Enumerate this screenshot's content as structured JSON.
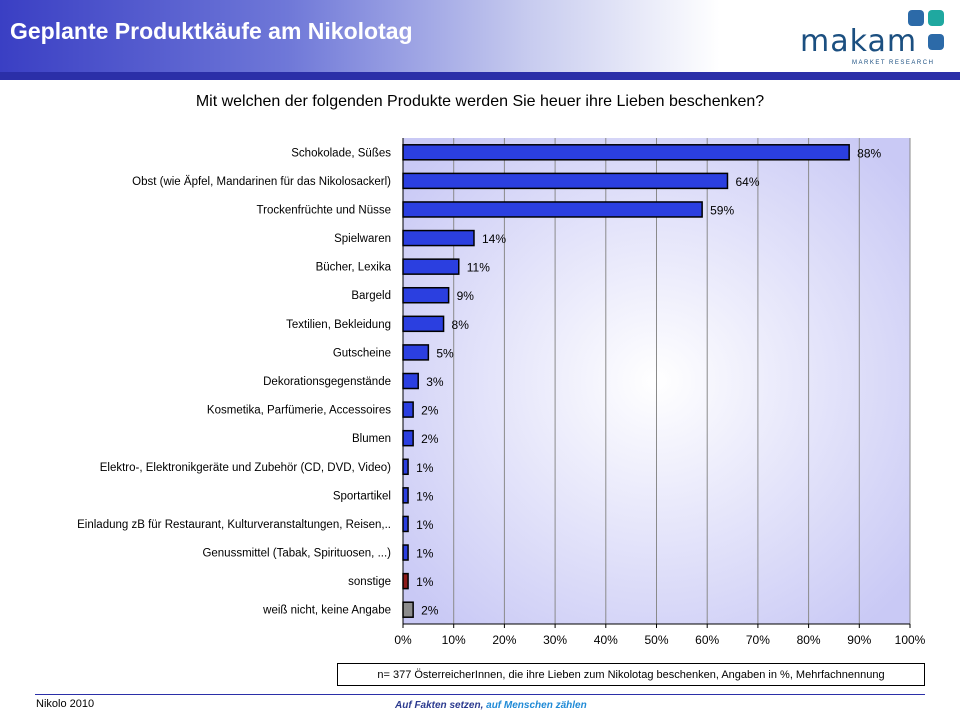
{
  "header": {
    "title": "Geplante Produktkäufe am Nikolotag"
  },
  "logo": {
    "word": "makam",
    "subtitle": "MARKET RESEARCH"
  },
  "question": "Mit welchen der folgenden Produkte werden Sie heuer ihre Lieben beschenken?",
  "chart_data": {
    "type": "bar",
    "orientation": "horizontal",
    "title": "Mit welchen der folgenden Produkte werden Sie heuer ihre Lieben beschenken?",
    "categories": [
      "Schokolade, Süßes",
      "Obst (wie Äpfel, Mandarinen für das Nikolosackerl)",
      "Trockenfrüchte und Nüsse",
      "Spielwaren",
      "Bücher, Lexika",
      "Bargeld",
      "Textilien, Bekleidung",
      "Gutscheine",
      "Dekorationsgegenstände",
      "Kosmetika, Parfümerie, Accessoires",
      "Blumen",
      "Elektro-, Elektronikgeräte und Zubehör (CD, DVD, Video)",
      "Sportartikel",
      "Einladung zB für Restaurant, Kulturveranstaltungen, Reisen,..",
      "Genussmittel (Tabak, Spirituosen, ...)",
      "sonstige",
      "weiß nicht, keine Angabe"
    ],
    "values": [
      88,
      64,
      59,
      14,
      11,
      9,
      8,
      5,
      3,
      2,
      2,
      1,
      1,
      1,
      1,
      1,
      2
    ],
    "value_labels": [
      "88%",
      "64%",
      "59%",
      "14%",
      "11%",
      "9%",
      "8%",
      "5%",
      "3%",
      "2%",
      "2%",
      "1%",
      "1%",
      "1%",
      "1%",
      "1%",
      "2%"
    ],
    "bar_colors": [
      "#2b3fe0",
      "#2b3fe0",
      "#2b3fe0",
      "#2b3fe0",
      "#2b3fe0",
      "#2b3fe0",
      "#2b3fe0",
      "#2b3fe0",
      "#2b3fe0",
      "#2b3fe0",
      "#2b3fe0",
      "#2b3fe0",
      "#2b3fe0",
      "#2b3fe0",
      "#2b3fe0",
      "#8b1a1a",
      "#8c8c8c"
    ],
    "xlim": [
      0,
      100
    ],
    "xticks": [
      "0%",
      "10%",
      "20%",
      "30%",
      "40%",
      "50%",
      "60%",
      "70%",
      "80%",
      "90%",
      "100%"
    ],
    "grid": true,
    "legend": "none"
  },
  "note": "n= 377 ÖsterreicherInnen, die ihre Lieben zum Nikolotag beschenken, Angaben in %, Mehrfachnennung",
  "footer": {
    "left": "Nikolo 2010",
    "slogan_part1": "Auf Fakten setzen,",
    "slogan_part2": "auf Menschen zählen"
  }
}
